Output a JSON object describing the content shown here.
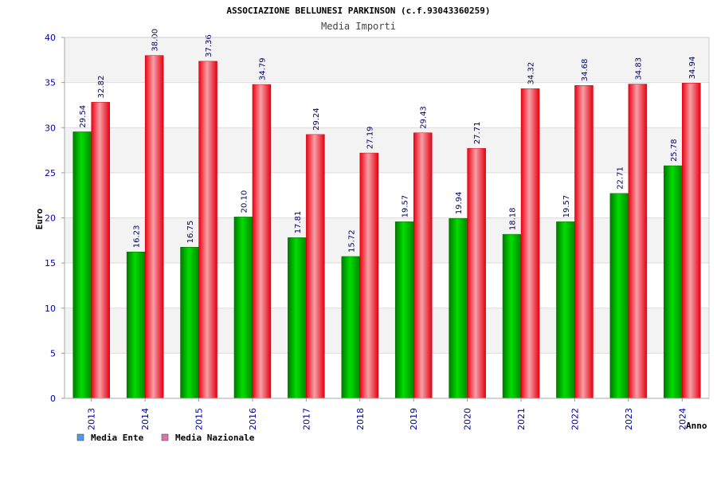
{
  "chart_data": {
    "type": "bar",
    "title": "ASSOCIAZIONE BELLUNESI PARKINSON (c.f.93043360259)",
    "subtitle": "Media Importi",
    "xlabel": "Anno",
    "ylabel": "Euro",
    "ylim": [
      0,
      40
    ],
    "yticks": [
      "0",
      "5",
      "10",
      "15",
      "20",
      "25",
      "30",
      "35",
      "40"
    ],
    "grid": true,
    "legend_position": "bottom-left",
    "categories": [
      "2013",
      "2014",
      "2015",
      "2016",
      "2017",
      "2018",
      "2019",
      "2020",
      "2021",
      "2022",
      "2023",
      "2024"
    ],
    "series": [
      {
        "name": "Media Ente",
        "color": "#00aa00",
        "legend_color": "#5599ee",
        "values": [
          29.54,
          16.23,
          16.75,
          20.1,
          17.81,
          15.72,
          19.57,
          19.94,
          18.18,
          19.57,
          22.71,
          25.78
        ],
        "labels": [
          "29.54",
          "16.23",
          "16.75",
          "20.10",
          "17.81",
          "15.72",
          "19.57",
          "19.94",
          "18.18",
          "19.57",
          "22.71",
          "25.78"
        ]
      },
      {
        "name": "Media Nazionale",
        "color": "#ee1122",
        "legend_color": "#dd77aa",
        "values": [
          32.82,
          38.0,
          37.36,
          34.79,
          29.24,
          27.19,
          29.43,
          27.71,
          34.32,
          34.68,
          34.83,
          34.94
        ],
        "labels": [
          "32.82",
          "38.00",
          "37.36",
          "34.79",
          "29.24",
          "27.19",
          "29.43",
          "27.71",
          "34.32",
          "34.68",
          "34.83",
          "34.94"
        ]
      }
    ]
  }
}
